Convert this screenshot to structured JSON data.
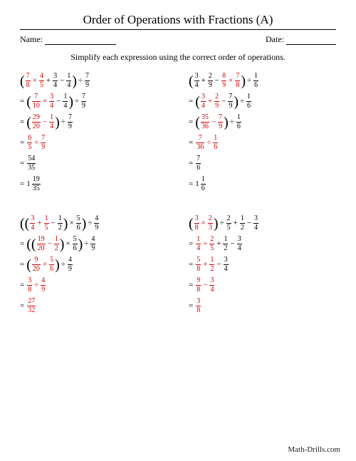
{
  "title": "Order of Operations with Fractions (A)",
  "name_label": "Name:",
  "date_label": "Date:",
  "instruction": "Simplify each expression using the correct order of operations.",
  "footer": "Math-Drills.com",
  "colors": {
    "highlight": "#d00000",
    "text": "#000000"
  },
  "problems": [
    {
      "lines": [
        [
          {
            "t": "lp"
          },
          {
            "t": "f",
            "n": "7",
            "d": "8",
            "c": "red"
          },
          {
            "t": "op",
            "v": "×",
            "c": "red"
          },
          {
            "t": "f",
            "n": "4",
            "d": "5",
            "c": "red"
          },
          {
            "t": "op",
            "v": "+"
          },
          {
            "t": "f",
            "n": "3",
            "d": "4"
          },
          {
            "t": "op",
            "v": "−"
          },
          {
            "t": "f",
            "n": "1",
            "d": "4"
          },
          {
            "t": "rp"
          },
          {
            "t": "op",
            "v": "÷"
          },
          {
            "t": "f",
            "n": "7",
            "d": "9"
          }
        ],
        [
          {
            "t": "eq"
          },
          {
            "t": "lp"
          },
          {
            "t": "f",
            "n": "7",
            "d": "10",
            "c": "red"
          },
          {
            "t": "op",
            "v": "+",
            "c": "red"
          },
          {
            "t": "f",
            "n": "3",
            "d": "4",
            "c": "red"
          },
          {
            "t": "op",
            "v": "−"
          },
          {
            "t": "f",
            "n": "1",
            "d": "4"
          },
          {
            "t": "rp"
          },
          {
            "t": "op",
            "v": "÷"
          },
          {
            "t": "f",
            "n": "7",
            "d": "9"
          }
        ],
        [
          {
            "t": "eq"
          },
          {
            "t": "lp"
          },
          {
            "t": "f",
            "n": "29",
            "d": "20",
            "c": "red"
          },
          {
            "t": "op",
            "v": "−",
            "c": "red"
          },
          {
            "t": "f",
            "n": "1",
            "d": "4",
            "c": "red"
          },
          {
            "t": "rp"
          },
          {
            "t": "op",
            "v": "÷"
          },
          {
            "t": "f",
            "n": "7",
            "d": "9"
          }
        ],
        [
          {
            "t": "eq"
          },
          {
            "t": "f",
            "n": "6",
            "d": "5",
            "c": "red"
          },
          {
            "t": "op",
            "v": "÷",
            "c": "red"
          },
          {
            "t": "f",
            "n": "7",
            "d": "9",
            "c": "red"
          }
        ],
        [
          {
            "t": "eq"
          },
          {
            "t": "f",
            "n": "54",
            "d": "35"
          }
        ],
        [
          {
            "t": "eq"
          },
          {
            "t": "mixed",
            "w": "1",
            "n": "19",
            "d": "35"
          }
        ]
      ]
    },
    {
      "lines": [
        [
          {
            "t": "lp"
          },
          {
            "t": "f",
            "n": "3",
            "d": "4"
          },
          {
            "t": "op",
            "v": "+"
          },
          {
            "t": "f",
            "n": "2",
            "d": "9"
          },
          {
            "t": "op",
            "v": "−"
          },
          {
            "t": "f",
            "n": "8",
            "d": "9",
            "c": "red"
          },
          {
            "t": "op",
            "v": "×",
            "c": "red"
          },
          {
            "t": "f",
            "n": "7",
            "d": "8",
            "c": "red"
          },
          {
            "t": "rp"
          },
          {
            "t": "op",
            "v": "÷"
          },
          {
            "t": "f",
            "n": "1",
            "d": "6"
          }
        ],
        [
          {
            "t": "eq"
          },
          {
            "t": "lp"
          },
          {
            "t": "f",
            "n": "3",
            "d": "4",
            "c": "red"
          },
          {
            "t": "op",
            "v": "+",
            "c": "red"
          },
          {
            "t": "f",
            "n": "2",
            "d": "9",
            "c": "red"
          },
          {
            "t": "op",
            "v": "−"
          },
          {
            "t": "f",
            "n": "7",
            "d": "9"
          },
          {
            "t": "rp"
          },
          {
            "t": "op",
            "v": "÷"
          },
          {
            "t": "f",
            "n": "1",
            "d": "6"
          }
        ],
        [
          {
            "t": "eq"
          },
          {
            "t": "lp"
          },
          {
            "t": "f",
            "n": "35",
            "d": "36",
            "c": "red"
          },
          {
            "t": "op",
            "v": "−",
            "c": "red"
          },
          {
            "t": "f",
            "n": "7",
            "d": "9",
            "c": "red"
          },
          {
            "t": "rp"
          },
          {
            "t": "op",
            "v": "÷"
          },
          {
            "t": "f",
            "n": "1",
            "d": "6"
          }
        ],
        [
          {
            "t": "eq"
          },
          {
            "t": "f",
            "n": "7",
            "d": "36",
            "c": "red"
          },
          {
            "t": "op",
            "v": "÷",
            "c": "red"
          },
          {
            "t": "f",
            "n": "1",
            "d": "6",
            "c": "red"
          }
        ],
        [
          {
            "t": "eq"
          },
          {
            "t": "f",
            "n": "7",
            "d": "6"
          }
        ],
        [
          {
            "t": "eq"
          },
          {
            "t": "mixed",
            "w": "1",
            "n": "1",
            "d": "6"
          }
        ]
      ]
    },
    {
      "lines": [
        [
          {
            "t": "lp"
          },
          {
            "t": "lp"
          },
          {
            "t": "f",
            "n": "3",
            "d": "4",
            "c": "red"
          },
          {
            "t": "op",
            "v": "+",
            "c": "red"
          },
          {
            "t": "f",
            "n": "1",
            "d": "5",
            "c": "red"
          },
          {
            "t": "op",
            "v": "−"
          },
          {
            "t": "f",
            "n": "1",
            "d": "2"
          },
          {
            "t": "rp"
          },
          {
            "t": "op",
            "v": "×"
          },
          {
            "t": "f",
            "n": "5",
            "d": "6"
          },
          {
            "t": "rp"
          },
          {
            "t": "op",
            "v": "÷"
          },
          {
            "t": "f",
            "n": "4",
            "d": "9"
          }
        ],
        [
          {
            "t": "eq"
          },
          {
            "t": "lp"
          },
          {
            "t": "lp"
          },
          {
            "t": "f",
            "n": "19",
            "d": "20",
            "c": "red"
          },
          {
            "t": "op",
            "v": "−",
            "c": "red"
          },
          {
            "t": "f",
            "n": "1",
            "d": "2",
            "c": "red"
          },
          {
            "t": "rp"
          },
          {
            "t": "op",
            "v": "×"
          },
          {
            "t": "f",
            "n": "5",
            "d": "6"
          },
          {
            "t": "rp"
          },
          {
            "t": "op",
            "v": "÷"
          },
          {
            "t": "f",
            "n": "4",
            "d": "9"
          }
        ],
        [
          {
            "t": "eq"
          },
          {
            "t": "lp"
          },
          {
            "t": "f",
            "n": "9",
            "d": "20",
            "c": "red"
          },
          {
            "t": "op",
            "v": "×",
            "c": "red"
          },
          {
            "t": "f",
            "n": "5",
            "d": "6",
            "c": "red"
          },
          {
            "t": "rp"
          },
          {
            "t": "op",
            "v": "÷"
          },
          {
            "t": "f",
            "n": "4",
            "d": "9"
          }
        ],
        [
          {
            "t": "eq"
          },
          {
            "t": "f",
            "n": "3",
            "d": "8",
            "c": "red"
          },
          {
            "t": "op",
            "v": "÷",
            "c": "red"
          },
          {
            "t": "f",
            "n": "4",
            "d": "9",
            "c": "red"
          }
        ],
        [
          {
            "t": "eq"
          },
          {
            "t": "f",
            "n": "27",
            "d": "32",
            "c": "red"
          }
        ]
      ]
    },
    {
      "lines": [
        [
          {
            "t": "lp"
          },
          {
            "t": "f",
            "n": "3",
            "d": "8",
            "c": "red"
          },
          {
            "t": "op",
            "v": "×",
            "c": "red"
          },
          {
            "t": "f",
            "n": "2",
            "d": "3",
            "c": "red"
          },
          {
            "t": "rp"
          },
          {
            "t": "op",
            "v": "÷"
          },
          {
            "t": "f",
            "n": "2",
            "d": "5"
          },
          {
            "t": "op",
            "v": "+"
          },
          {
            "t": "f",
            "n": "1",
            "d": "2"
          },
          {
            "t": "op",
            "v": "−"
          },
          {
            "t": "f",
            "n": "3",
            "d": "4"
          }
        ],
        [
          {
            "t": "eq"
          },
          {
            "t": "f",
            "n": "1",
            "d": "4",
            "c": "red"
          },
          {
            "t": "op",
            "v": "÷",
            "c": "red"
          },
          {
            "t": "f",
            "n": "2",
            "d": "5",
            "c": "red"
          },
          {
            "t": "op",
            "v": "+"
          },
          {
            "t": "f",
            "n": "1",
            "d": "2"
          },
          {
            "t": "op",
            "v": "−"
          },
          {
            "t": "f",
            "n": "3",
            "d": "4"
          }
        ],
        [
          {
            "t": "eq"
          },
          {
            "t": "f",
            "n": "5",
            "d": "8",
            "c": "red"
          },
          {
            "t": "op",
            "v": "+",
            "c": "red"
          },
          {
            "t": "f",
            "n": "1",
            "d": "2",
            "c": "red"
          },
          {
            "t": "op",
            "v": "−"
          },
          {
            "t": "f",
            "n": "3",
            "d": "4"
          }
        ],
        [
          {
            "t": "eq"
          },
          {
            "t": "f",
            "n": "9",
            "d": "8",
            "c": "red"
          },
          {
            "t": "op",
            "v": "−",
            "c": "red"
          },
          {
            "t": "f",
            "n": "3",
            "d": "4",
            "c": "red"
          }
        ],
        [
          {
            "t": "eq"
          },
          {
            "t": "f",
            "n": "3",
            "d": "8",
            "c": "red"
          }
        ]
      ]
    }
  ]
}
